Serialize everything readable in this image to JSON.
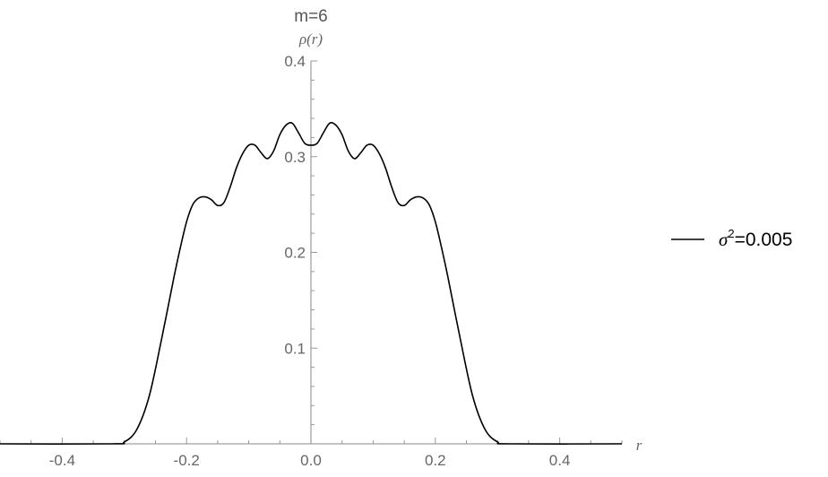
{
  "chart_data": {
    "type": "line",
    "title": "m=6",
    "xlabel": "r",
    "ylabel": "ρ(r)",
    "xlim": [
      -0.5,
      0.5
    ],
    "ylim": [
      0,
      0.4
    ],
    "xticks": [
      -0.4,
      -0.2,
      0.0,
      0.2,
      0.4
    ],
    "xtick_labels": [
      "-0.4",
      "-0.2",
      "0.0",
      "0.2",
      "0.4"
    ],
    "yticks": [
      0.1,
      0.2,
      0.3,
      0.4
    ],
    "ytick_labels": [
      "0.1",
      "0.2",
      "0.3",
      "0.4"
    ],
    "grid": false,
    "legend_position": "right",
    "series": [
      {
        "name": "σ²=0.005",
        "name_symbol": "σ",
        "name_exponent": "2",
        "name_rest": "=0.005",
        "color": "#000000",
        "x": [
          -0.5,
          -0.32,
          -0.3,
          -0.28,
          -0.26,
          -0.24,
          -0.22,
          -0.21,
          -0.2,
          -0.19,
          -0.18,
          -0.17,
          -0.16,
          -0.15,
          -0.14,
          -0.13,
          -0.12,
          -0.11,
          -0.1,
          -0.09,
          -0.08,
          -0.07,
          -0.06,
          -0.05,
          -0.04,
          -0.03,
          -0.02,
          -0.01,
          0.0,
          0.01,
          0.02,
          0.03,
          0.04,
          0.05,
          0.06,
          0.07,
          0.08,
          0.09,
          0.1,
          0.11,
          0.12,
          0.13,
          0.14,
          0.15,
          0.16,
          0.17,
          0.18,
          0.19,
          0.2,
          0.21,
          0.22,
          0.24,
          0.26,
          0.28,
          0.3,
          0.32,
          0.5
        ],
        "y": [
          0.0,
          0.0,
          0.002,
          0.015,
          0.05,
          0.11,
          0.175,
          0.205,
          0.232,
          0.25,
          0.257,
          0.258,
          0.255,
          0.249,
          0.252,
          0.268,
          0.288,
          0.303,
          0.312,
          0.312,
          0.304,
          0.298,
          0.306,
          0.323,
          0.333,
          0.335,
          0.325,
          0.314,
          0.312,
          0.314,
          0.325,
          0.335,
          0.333,
          0.323,
          0.306,
          0.298,
          0.304,
          0.312,
          0.312,
          0.303,
          0.288,
          0.268,
          0.252,
          0.249,
          0.255,
          0.258,
          0.257,
          0.25,
          0.232,
          0.205,
          0.175,
          0.11,
          0.05,
          0.015,
          0.002,
          0.0,
          0.0
        ]
      }
    ]
  }
}
